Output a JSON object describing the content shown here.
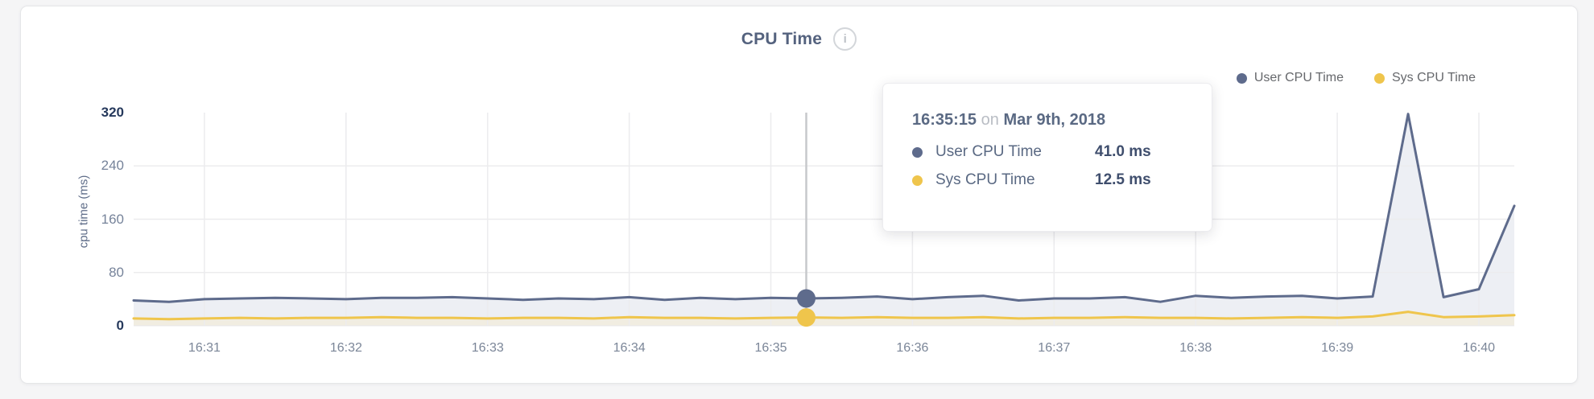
{
  "header": {
    "title": "CPU Time",
    "info_glyph": "i"
  },
  "legend": {
    "items": [
      {
        "label": "User CPU Time",
        "color": "#5e6b8c"
      },
      {
        "label": "Sys CPU Time",
        "color": "#efc54c"
      }
    ]
  },
  "axes": {
    "y_label": "cpu time (ms)"
  },
  "tooltip": {
    "time": "16:35:15",
    "conjunction": "on",
    "date": "Mar 9th, 2018",
    "rows": [
      {
        "label": "User CPU Time",
        "value": "41.0 ms",
        "color": "#5e6b8c"
      },
      {
        "label": "Sys CPU Time",
        "value": "12.5 ms",
        "color": "#efc54c"
      }
    ]
  },
  "colors": {
    "grid": "#ececee",
    "baseline": "#e8e8ea",
    "hover_line": "#c7c9cc",
    "background": "#f5f5f6"
  },
  "chart_data": {
    "type": "area",
    "title": "CPU Time",
    "ylabel": "cpu time (ms)",
    "xlabel": "",
    "ylim": [
      0,
      320
    ],
    "y_ticks": [
      0,
      80,
      160,
      240,
      320
    ],
    "y_tick_emphasis": [
      0,
      320
    ],
    "grid": "on",
    "legend_position": "top-right",
    "x": [
      "16:30:30",
      "16:30:45",
      "16:31:00",
      "16:31:15",
      "16:31:30",
      "16:31:45",
      "16:32:00",
      "16:32:15",
      "16:32:30",
      "16:32:45",
      "16:33:00",
      "16:33:15",
      "16:33:30",
      "16:33:45",
      "16:34:00",
      "16:34:15",
      "16:34:30",
      "16:34:45",
      "16:35:00",
      "16:35:15",
      "16:35:30",
      "16:35:45",
      "16:36:00",
      "16:36:15",
      "16:36:30",
      "16:36:45",
      "16:37:00",
      "16:37:15",
      "16:37:30",
      "16:37:45",
      "16:38:00",
      "16:38:15",
      "16:38:30",
      "16:38:45",
      "16:39:00",
      "16:39:15",
      "16:39:30",
      "16:39:45",
      "16:40:00",
      "16:40:15"
    ],
    "x_ticks": [
      {
        "label": "16:31",
        "time": "16:31:00"
      },
      {
        "label": "16:32",
        "time": "16:32:00"
      },
      {
        "label": "16:33",
        "time": "16:33:00"
      },
      {
        "label": "16:34",
        "time": "16:34:00"
      },
      {
        "label": "16:35",
        "time": "16:35:00"
      },
      {
        "label": "16:36",
        "time": "16:36:00"
      },
      {
        "label": "16:37",
        "time": "16:37:00"
      },
      {
        "label": "16:38",
        "time": "16:38:00"
      },
      {
        "label": "16:39",
        "time": "16:39:00"
      },
      {
        "label": "16:40",
        "time": "16:40:00"
      }
    ],
    "series": [
      {
        "name": "User CPU Time",
        "color": "#5e6b8c",
        "fill": "#edeff4",
        "values": [
          38,
          36,
          40,
          41,
          42,
          41,
          40,
          42,
          42,
          43,
          41,
          39,
          41,
          40,
          43,
          39,
          42,
          40,
          42,
          41,
          42,
          44,
          40,
          43,
          45,
          38,
          41,
          41,
          43,
          36,
          45,
          42,
          44,
          45,
          41,
          44,
          318,
          43,
          55,
          180
        ]
      },
      {
        "name": "Sys CPU Time",
        "color": "#efc54c",
        "fill": "#f1ede1",
        "values": [
          11,
          10,
          11,
          12,
          11,
          12,
          12,
          13,
          12,
          12,
          11,
          12,
          12,
          11,
          13,
          12,
          12,
          11,
          12,
          12.5,
          12,
          13,
          12,
          12,
          13,
          11,
          12,
          12,
          13,
          12,
          12,
          11,
          12,
          13,
          12,
          14,
          21,
          13,
          14,
          16
        ]
      }
    ],
    "hover": {
      "index": 19,
      "time": "16:35:15",
      "date": "Mar 9th, 2018",
      "values": [
        41.0,
        12.5
      ]
    }
  }
}
